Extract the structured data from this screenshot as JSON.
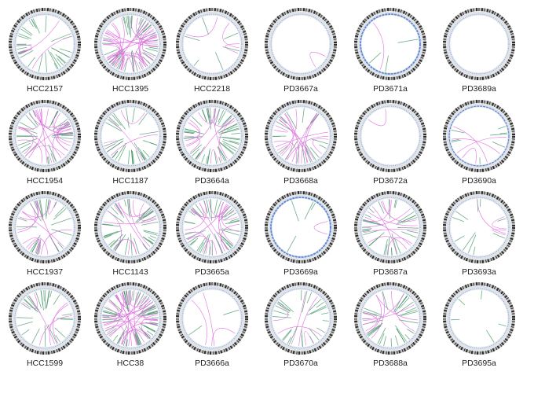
{
  "colors": {
    "ideogram_dark": "#2a2a2a",
    "ideogram_light": "#bdbdbd",
    "track_bg": "#dfe3ea",
    "copy_number": "#3a6fd0",
    "intra_links": "#2e8b57",
    "inter_links": "#e070e0"
  },
  "samples": [
    {
      "name": "HCC2157",
      "green": 30,
      "pink": 4,
      "blue": 1
    },
    {
      "name": "HCC1395",
      "green": 40,
      "pink": 30,
      "blue": 1
    },
    {
      "name": "HCC2218",
      "green": 6,
      "pink": 3,
      "blue": 1
    },
    {
      "name": "PD3667a",
      "green": 0,
      "pink": 1,
      "blue": 1
    },
    {
      "name": "PD3671a",
      "green": 3,
      "pink": 1,
      "blue": 3
    },
    {
      "name": "PD3689a",
      "green": 0,
      "pink": 0,
      "blue": 1
    },
    {
      "name": "HCC1954",
      "green": 30,
      "pink": 20,
      "blue": 1
    },
    {
      "name": "HCC1187",
      "green": 30,
      "pink": 4,
      "blue": 1
    },
    {
      "name": "PD3664a",
      "green": 50,
      "pink": 10,
      "blue": 1
    },
    {
      "name": "PD3668a",
      "green": 20,
      "pink": 15,
      "blue": 1
    },
    {
      "name": "PD3672a",
      "green": 0,
      "pink": 1,
      "blue": 1
    },
    {
      "name": "PD3690a",
      "green": 8,
      "pink": 4,
      "blue": 2
    },
    {
      "name": "HCC1937",
      "green": 25,
      "pink": 12,
      "blue": 1
    },
    {
      "name": "HCC1143",
      "green": 40,
      "pink": 10,
      "blue": 1
    },
    {
      "name": "PD3665a",
      "green": 40,
      "pink": 15,
      "blue": 1
    },
    {
      "name": "PD3669a",
      "green": 4,
      "pink": 1,
      "blue": 3
    },
    {
      "name": "PD3687a",
      "green": 30,
      "pink": 10,
      "blue": 1
    },
    {
      "name": "PD3693a",
      "green": 10,
      "pink": 3,
      "blue": 1
    },
    {
      "name": "HCC1599",
      "green": 25,
      "pink": 5,
      "blue": 1
    },
    {
      "name": "HCC38",
      "green": 60,
      "pink": 30,
      "blue": 1
    },
    {
      "name": "PD3666a",
      "green": 2,
      "pink": 3,
      "blue": 1
    },
    {
      "name": "PD3670a",
      "green": 25,
      "pink": 5,
      "blue": 1
    },
    {
      "name": "PD3688a",
      "green": 30,
      "pink": 8,
      "blue": 1
    },
    {
      "name": "PD3695a",
      "green": 5,
      "pink": 0,
      "blue": 1
    }
  ]
}
